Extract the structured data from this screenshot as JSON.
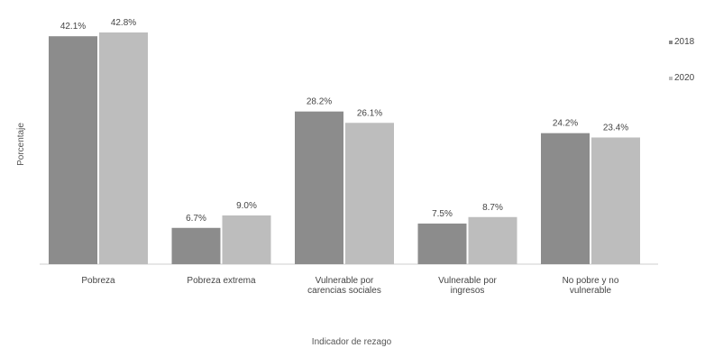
{
  "chart_data": {
    "type": "bar",
    "title": "",
    "xlabel": "Indicador de rezago",
    "ylabel": "Porcentaje",
    "ylim": [
      0,
      45
    ],
    "grid": false,
    "legend_position": "top-right",
    "categories": [
      [
        "Pobreza"
      ],
      [
        "Pobreza extrema"
      ],
      [
        "Vulnerable por",
        "carencias sociales"
      ],
      [
        "Vulnerable por",
        "ingresos"
      ],
      [
        "No pobre y no",
        "vulnerable"
      ]
    ],
    "series": [
      {
        "name": "2018",
        "color": "#8c8c8c",
        "values": [
          42.1,
          6.7,
          28.2,
          7.5,
          24.2
        ],
        "labels": [
          "42.1%",
          "6.7%",
          "28.2%",
          "7.5%",
          "24.2%"
        ]
      },
      {
        "name": "2020",
        "color": "#bdbdbd",
        "values": [
          42.8,
          9.0,
          26.1,
          8.7,
          23.4
        ],
        "labels": [
          "42.8%",
          "9.0%",
          "26.1%",
          "8.7%",
          "23.4%"
        ]
      }
    ]
  }
}
